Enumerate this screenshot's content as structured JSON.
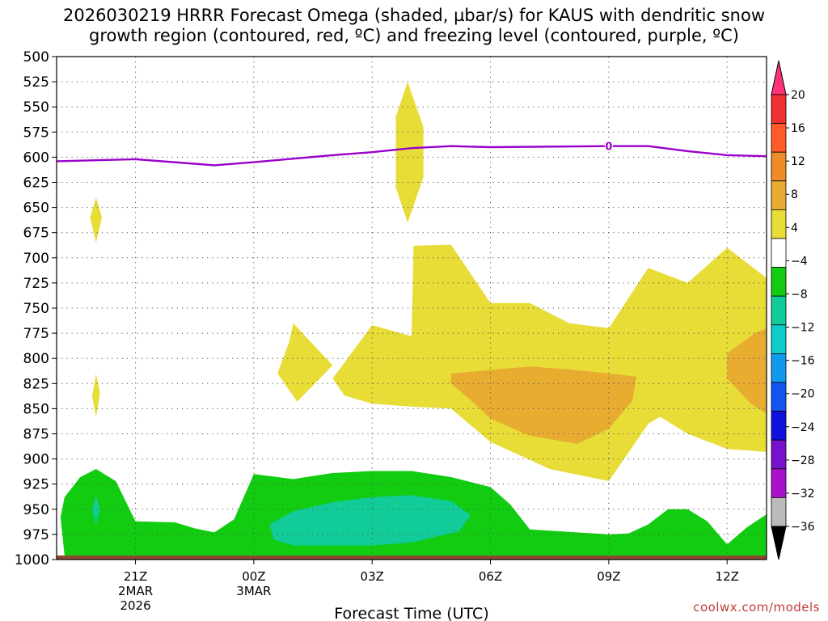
{
  "title": {
    "line1": "2026030219 HRRR Forecast Omega (shaded, µbar/s) for KAUS with dendritic snow",
    "line2": "growth region (contoured, red, ºC) and freezing level (contoured, purple, ºC)"
  },
  "credit": "coolwx.com/models",
  "chart_data": {
    "type": "heatmap",
    "xlabel": "Forecast Time (UTC)",
    "ylabel": "",
    "x_unit": "forecast hours from 2026-03-02 19Z",
    "xlim": [
      0,
      18
    ],
    "ylim": [
      1000,
      500
    ],
    "y_ticks": [
      500,
      525,
      550,
      575,
      600,
      625,
      650,
      675,
      700,
      725,
      750,
      775,
      800,
      825,
      850,
      875,
      900,
      925,
      950,
      975,
      1000
    ],
    "x_ticks": [
      {
        "x": 2,
        "label": "21Z",
        "sub1": "2MAR",
        "sub2": "2026"
      },
      {
        "x": 5,
        "label": "00Z",
        "sub1": "3MAR",
        "sub2": ""
      },
      {
        "x": 8,
        "label": "03Z",
        "sub1": "",
        "sub2": ""
      },
      {
        "x": 11,
        "label": "06Z",
        "sub1": "",
        "sub2": ""
      },
      {
        "x": 14,
        "label": "09Z",
        "sub1": "",
        "sub2": ""
      },
      {
        "x": 17,
        "label": "12Z",
        "sub1": "",
        "sub2": ""
      }
    ],
    "grid": true,
    "colorbar": {
      "labels": [
        "20",
        "16",
        "12",
        "8",
        "4",
        "−4",
        "−8",
        "−12",
        "−16",
        "−20",
        "−24",
        "−28",
        "−32",
        "−36"
      ],
      "colors": [
        "#ff3377",
        "#ee3030",
        "#ff5a28",
        "#ee8c28",
        "#e8ad30",
        "#e8dc37",
        "#ffffff",
        "#11cc11",
        "#11cc99",
        "#11cccc",
        "#1199ee",
        "#1155ee",
        "#1111dd",
        "#7711cc",
        "#aa11cc",
        "#bbbbbb",
        "#000000"
      ]
    },
    "freezing_level": {
      "label": "0",
      "color": "#9900cc",
      "points": [
        [
          0,
          604
        ],
        [
          2,
          602
        ],
        [
          4,
          608
        ],
        [
          5,
          605
        ],
        [
          7,
          598
        ],
        [
          8,
          595
        ],
        [
          9,
          591
        ],
        [
          10,
          589
        ],
        [
          11,
          590
        ],
        [
          14,
          589
        ],
        [
          15,
          589
        ],
        [
          16,
          594
        ],
        [
          17,
          598
        ],
        [
          18,
          599
        ]
      ]
    },
    "shaded_regions": [
      {
        "value": 4,
        "color": "#e8dc37",
        "points": [
          [
            1,
            640
          ],
          [
            1.15,
            660
          ],
          [
            1,
            685
          ],
          [
            0.85,
            660
          ]
        ]
      },
      {
        "value": 4,
        "color": "#e8dc37",
        "points": [
          [
            8.9,
            525
          ],
          [
            9.3,
            570
          ],
          [
            9.3,
            620
          ],
          [
            8.9,
            665
          ],
          [
            8.6,
            630
          ],
          [
            8.6,
            560
          ]
        ]
      },
      {
        "value": 4,
        "color": "#e8dc37",
        "points": [
          [
            1,
            815
          ],
          [
            1.1,
            835
          ],
          [
            1,
            858
          ],
          [
            0.9,
            838
          ]
        ]
      },
      {
        "value": 4,
        "color": "#e8dc37",
        "points": [
          [
            5.6,
            815
          ],
          [
            5.9,
            783
          ],
          [
            6,
            765
          ],
          [
            7,
            807
          ],
          [
            6.1,
            843
          ]
        ]
      },
      {
        "value": 4,
        "color": "#e8dc37",
        "points": [
          [
            7,
            820
          ],
          [
            8,
            767
          ],
          [
            9,
            778
          ],
          [
            9.05,
            688
          ],
          [
            10,
            687
          ],
          [
            11,
            745
          ],
          [
            12,
            745
          ],
          [
            13,
            765
          ],
          [
            14,
            770
          ],
          [
            15,
            710
          ],
          [
            16,
            725
          ],
          [
            17,
            690
          ],
          [
            18,
            720
          ],
          [
            18,
            893
          ],
          [
            17,
            890
          ],
          [
            16,
            875
          ],
          [
            15.3,
            858
          ],
          [
            15,
            865
          ],
          [
            14,
            922
          ],
          [
            12.5,
            910
          ],
          [
            11,
            883
          ],
          [
            10,
            850
          ],
          [
            9,
            848
          ],
          [
            8,
            845
          ],
          [
            7.3,
            837
          ]
        ]
      },
      {
        "value": 8,
        "color": "#e8ad30",
        "points": [
          [
            10,
            815
          ],
          [
            12,
            808
          ],
          [
            13,
            811
          ],
          [
            14,
            815
          ],
          [
            14.7,
            818
          ],
          [
            14.6,
            842
          ],
          [
            14,
            870
          ],
          [
            13.2,
            885
          ],
          [
            12,
            877
          ],
          [
            11,
            860
          ],
          [
            10.6,
            845
          ],
          [
            10,
            825
          ]
        ]
      },
      {
        "value": 8,
        "color": "#e8ad30",
        "points": [
          [
            18,
            770
          ],
          [
            17.7,
            775
          ],
          [
            17,
            795
          ],
          [
            17,
            820
          ],
          [
            17.6,
            845
          ],
          [
            18,
            855
          ]
        ]
      },
      {
        "value": -4,
        "color": "#11cc11",
        "points": [
          [
            0.2,
            938
          ],
          [
            0.6,
            918
          ],
          [
            1,
            910
          ],
          [
            1.5,
            922
          ],
          [
            2,
            962
          ],
          [
            3,
            963
          ],
          [
            3.5,
            969
          ],
          [
            4,
            973
          ],
          [
            4.5,
            960
          ],
          [
            5,
            915
          ],
          [
            6,
            920
          ],
          [
            7,
            914
          ],
          [
            8,
            912
          ],
          [
            9,
            912
          ],
          [
            10,
            918
          ],
          [
            11,
            928
          ],
          [
            11.5,
            945
          ],
          [
            12,
            970
          ],
          [
            14,
            975
          ],
          [
            14.5,
            974
          ],
          [
            15,
            965
          ],
          [
            15.5,
            950
          ],
          [
            16,
            950
          ],
          [
            16.5,
            962
          ],
          [
            17,
            985
          ],
          [
            17.5,
            968
          ],
          [
            18,
            955
          ],
          [
            18,
            996
          ],
          [
            0.2,
            996
          ],
          [
            0.1,
            958
          ]
        ]
      },
      {
        "value": -8,
        "color": "#11cc99",
        "points": [
          [
            5.4,
            965
          ],
          [
            6,
            952
          ],
          [
            7,
            943
          ],
          [
            8,
            938
          ],
          [
            9,
            936
          ],
          [
            10,
            942
          ],
          [
            10.5,
            956
          ],
          [
            10.2,
            972
          ],
          [
            9,
            983
          ],
          [
            8,
            986
          ],
          [
            6,
            986
          ],
          [
            5.5,
            980
          ]
        ]
      },
      {
        "value": -8,
        "color": "#11cc99",
        "points": [
          [
            1,
            937
          ],
          [
            1.1,
            950
          ],
          [
            1,
            965
          ],
          [
            0.9,
            950
          ]
        ]
      }
    ]
  }
}
